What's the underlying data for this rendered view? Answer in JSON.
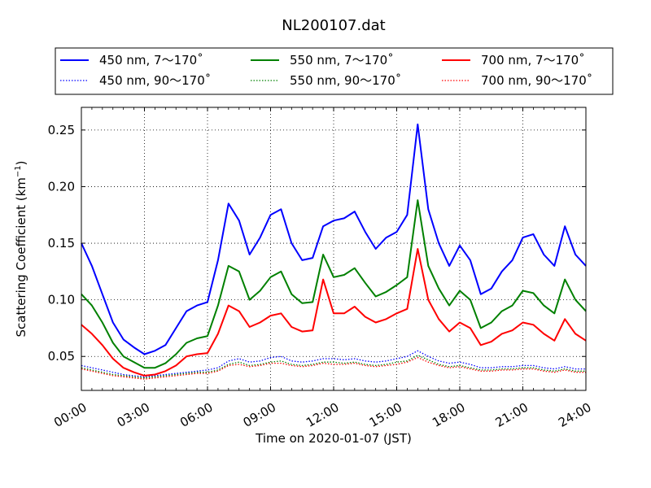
{
  "chart_data": {
    "type": "line",
    "title": "NL200107.dat",
    "xlabel": "Time on 2020-01-07 (JST)",
    "ylabel": "Scattering Coefficient (km",
    "ylabel_exponent": "−1",
    "ylabel_close": ")",
    "xlim": [
      0,
      24
    ],
    "ylim": [
      0.02,
      0.27
    ],
    "xticks": [
      0,
      3,
      6,
      9,
      12,
      15,
      18,
      21,
      24
    ],
    "xtick_labels": [
      "00:00",
      "03:00",
      "06:00",
      "09:00",
      "12:00",
      "15:00",
      "18:00",
      "21:00",
      "24:00"
    ],
    "yticks": [
      0.05,
      0.1,
      0.15,
      0.2,
      0.25
    ],
    "ytick_labels": [
      "0.05",
      "0.10",
      "0.15",
      "0.20",
      "0.25"
    ],
    "grid": true,
    "legend_position": "top, above plot, 3 columns",
    "x": [
      0,
      0.5,
      1,
      1.5,
      2,
      2.5,
      3,
      3.5,
      4,
      4.5,
      5,
      5.5,
      6,
      6.5,
      7,
      7.5,
      8,
      8.5,
      9,
      9.5,
      10,
      10.5,
      11,
      11.5,
      12,
      12.5,
      13,
      13.5,
      14,
      14.5,
      15,
      15.5,
      16,
      16.5,
      17,
      17.5,
      18,
      18.5,
      19,
      19.5,
      20,
      20.5,
      21,
      21.5,
      22,
      22.5,
      23,
      23.5,
      24
    ],
    "series": [
      {
        "name": "450 nm, 7～170˚",
        "color": "#0000ff",
        "style": "solid",
        "values": [
          0.15,
          0.13,
          0.105,
          0.08,
          0.065,
          0.058,
          0.052,
          0.055,
          0.06,
          0.075,
          0.09,
          0.095,
          0.098,
          0.135,
          0.185,
          0.17,
          0.14,
          0.155,
          0.175,
          0.18,
          0.15,
          0.135,
          0.137,
          0.165,
          0.17,
          0.172,
          0.178,
          0.16,
          0.145,
          0.155,
          0.16,
          0.175,
          0.255,
          0.18,
          0.15,
          0.13,
          0.148,
          0.135,
          0.105,
          0.11,
          0.125,
          0.135,
          0.155,
          0.158,
          0.14,
          0.13,
          0.165,
          0.14,
          0.13
        ]
      },
      {
        "name": "450 nm, 90～170˚",
        "color": "#0000ff",
        "style": "dotted",
        "values": [
          0.042,
          0.04,
          0.038,
          0.036,
          0.034,
          0.033,
          0.032,
          0.033,
          0.034,
          0.035,
          0.036,
          0.037,
          0.038,
          0.04,
          0.046,
          0.048,
          0.045,
          0.046,
          0.049,
          0.05,
          0.046,
          0.045,
          0.046,
          0.048,
          0.048,
          0.047,
          0.048,
          0.046,
          0.045,
          0.046,
          0.048,
          0.05,
          0.055,
          0.05,
          0.046,
          0.044,
          0.045,
          0.043,
          0.04,
          0.04,
          0.041,
          0.041,
          0.042,
          0.042,
          0.04,
          0.039,
          0.041,
          0.039,
          0.039
        ]
      },
      {
        "name": "550 nm, 7～170˚",
        "color": "#008000",
        "style": "solid",
        "values": [
          0.105,
          0.095,
          0.08,
          0.062,
          0.05,
          0.045,
          0.04,
          0.04,
          0.044,
          0.052,
          0.062,
          0.066,
          0.068,
          0.095,
          0.13,
          0.125,
          0.1,
          0.108,
          0.12,
          0.125,
          0.105,
          0.097,
          0.098,
          0.14,
          0.12,
          0.122,
          0.128,
          0.115,
          0.103,
          0.107,
          0.113,
          0.12,
          0.188,
          0.13,
          0.11,
          0.095,
          0.108,
          0.1,
          0.075,
          0.08,
          0.09,
          0.095,
          0.108,
          0.106,
          0.095,
          0.088,
          0.118,
          0.1,
          0.09
        ]
      },
      {
        "name": "550 nm, 90～170˚",
        "color": "#008000",
        "style": "dotted",
        "values": [
          0.04,
          0.038,
          0.036,
          0.034,
          0.033,
          0.032,
          0.031,
          0.032,
          0.033,
          0.034,
          0.035,
          0.036,
          0.036,
          0.038,
          0.043,
          0.045,
          0.042,
          0.043,
          0.045,
          0.046,
          0.043,
          0.042,
          0.043,
          0.045,
          0.045,
          0.044,
          0.045,
          0.043,
          0.042,
          0.043,
          0.045,
          0.046,
          0.051,
          0.047,
          0.043,
          0.041,
          0.042,
          0.04,
          0.038,
          0.038,
          0.039,
          0.039,
          0.04,
          0.04,
          0.038,
          0.037,
          0.039,
          0.037,
          0.037
        ]
      },
      {
        "name": "700 nm, 7～170˚",
        "color": "#ff0000",
        "style": "solid",
        "values": [
          0.078,
          0.07,
          0.06,
          0.048,
          0.04,
          0.036,
          0.033,
          0.034,
          0.037,
          0.042,
          0.05,
          0.052,
          0.053,
          0.07,
          0.095,
          0.09,
          0.076,
          0.08,
          0.086,
          0.088,
          0.076,
          0.072,
          0.073,
          0.118,
          0.088,
          0.088,
          0.094,
          0.085,
          0.08,
          0.083,
          0.088,
          0.092,
          0.145,
          0.1,
          0.083,
          0.072,
          0.08,
          0.075,
          0.06,
          0.063,
          0.07,
          0.073,
          0.08,
          0.078,
          0.07,
          0.064,
          0.083,
          0.07,
          0.064
        ]
      },
      {
        "name": "700 nm, 90～170˚",
        "color": "#ff0000",
        "style": "dotted",
        "values": [
          0.039,
          0.037,
          0.035,
          0.033,
          0.032,
          0.031,
          0.03,
          0.031,
          0.032,
          0.033,
          0.034,
          0.035,
          0.035,
          0.037,
          0.042,
          0.043,
          0.041,
          0.042,
          0.044,
          0.044,
          0.042,
          0.041,
          0.042,
          0.044,
          0.043,
          0.043,
          0.044,
          0.042,
          0.041,
          0.042,
          0.043,
          0.045,
          0.049,
          0.045,
          0.042,
          0.04,
          0.041,
          0.039,
          0.037,
          0.037,
          0.038,
          0.038,
          0.039,
          0.039,
          0.037,
          0.036,
          0.038,
          0.036,
          0.036
        ]
      }
    ]
  }
}
